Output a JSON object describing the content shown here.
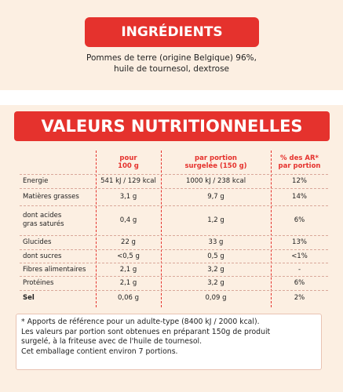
{
  "ingredients": {
    "title": "INGRÉDIENTS",
    "lines": [
      "Pommes de terre (origine Belgique) 96%,",
      "huile de tournesol, dextrose"
    ]
  },
  "nutrition": {
    "title": "VALEURS NUTRITIONNELLES",
    "headers": [
      [
        "pour",
        "100 g"
      ],
      [
        "par portion",
        "surgelée (150 g)"
      ],
      [
        "% des AR*",
        "par portion"
      ]
    ],
    "rows": [
      [
        "Energie",
        "541 kJ / 129 kcal",
        "1000 kJ / 238 kcal",
        "12%"
      ],
      [
        "Matières grasses",
        "3,1 g",
        "9,7 g",
        "14%"
      ],
      [
        "dont acides gras saturés",
        "0,4 g",
        "1,2 g",
        "6%"
      ],
      [
        "Glucides",
        "22 g",
        "33 g",
        "13%"
      ],
      [
        "dont sucres",
        "<0,5 g",
        "0,5 g",
        "<1%"
      ],
      [
        "Fibres alimentaires",
        "2,1 g",
        "3,2 g",
        "-"
      ],
      [
        "Protéines",
        "2,1 g",
        "3,2 g",
        "6%"
      ],
      [
        "Sel",
        "0,06 g",
        "0,09 g",
        "2%"
      ]
    ],
    "footnote": [
      "* Apports de référence pour un adulte-type (8400 kJ / 2000 kcal).",
      "Les valeurs par portion sont obtenues en préparant 150g de produit",
      "surgelé, à la friteuse avec de l'huile de tournesol.",
      "Cet emballage contient environ 7 portions."
    ]
  }
}
